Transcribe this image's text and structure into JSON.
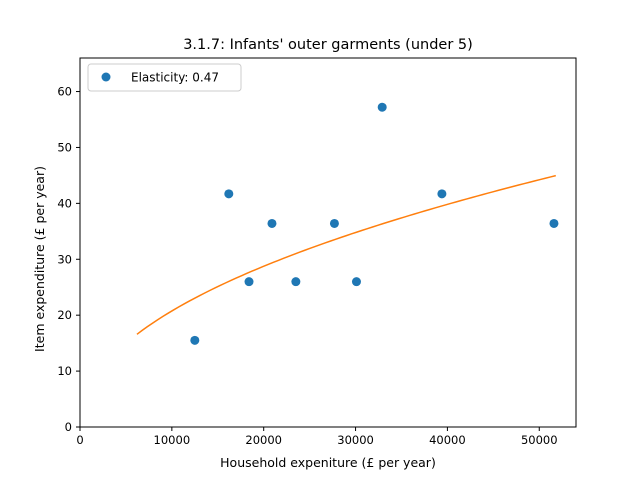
{
  "chart_data": {
    "type": "scatter",
    "title": "3.1.7: Infants' outer garments (under 5)",
    "xlabel": "Household expeniture (£ per year)",
    "ylabel": "Item expenditure (£ per year)",
    "xlim": [
      0,
      54000
    ],
    "ylim": [
      0,
      66
    ],
    "xticks": [
      0,
      10000,
      20000,
      30000,
      40000,
      50000
    ],
    "yticks": [
      0,
      10,
      20,
      30,
      40,
      50,
      60
    ],
    "legend": {
      "position": "top-left",
      "entries": [
        "Elasticity: 0.47"
      ]
    },
    "grid": false,
    "series": [
      {
        "name": "Elasticity: 0.47",
        "type": "scatter",
        "color": "#1f77b4",
        "points": [
          {
            "x": 12500,
            "y": 15.5
          },
          {
            "x": 16200,
            "y": 41.7
          },
          {
            "x": 18400,
            "y": 26.0
          },
          {
            "x": 20900,
            "y": 36.4
          },
          {
            "x": 23500,
            "y": 26.0
          },
          {
            "x": 27700,
            "y": 36.4
          },
          {
            "x": 30100,
            "y": 26.0
          },
          {
            "x": 32900,
            "y": 57.2
          },
          {
            "x": 39400,
            "y": 41.7
          },
          {
            "x": 51600,
            "y": 36.4
          }
        ]
      },
      {
        "type": "line",
        "color": "#ff7f0e",
        "fit": {
          "form": "power",
          "coefficient": 0.2736,
          "exponent": 0.47
        },
        "x_range": [
          6200,
          51800
        ]
      }
    ]
  }
}
